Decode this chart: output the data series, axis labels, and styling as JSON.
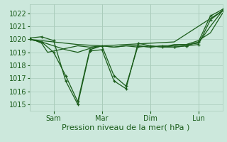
{
  "background_color": "#cce8dc",
  "grid_color": "#aaccbb",
  "line_color": "#1a5c1a",
  "xlabel": "Pression niveau de la mer( hPa )",
  "xlabel_fontsize": 8,
  "tick_label_fontsize": 7,
  "ylim": [
    1014.5,
    1022.7
  ],
  "yticks": [
    1015,
    1016,
    1017,
    1018,
    1019,
    1020,
    1021,
    1022
  ],
  "x_tick_positions": [
    1,
    3,
    5,
    7
  ],
  "x_tick_labels": [
    "Sam",
    "Mar",
    "Dim",
    "Lun"
  ],
  "xlim": [
    0,
    8
  ],
  "series1_x": [
    0,
    0.5,
    1.0,
    1.5,
    2.0,
    2.5,
    3.0,
    3.5,
    4.0,
    4.5,
    5.0,
    5.5,
    6.0,
    6.5,
    7.0,
    7.5,
    8.0
  ],
  "series1_y": [
    1020.1,
    1020.2,
    1019.9,
    1016.8,
    1015.0,
    1019.1,
    1019.2,
    1016.8,
    1016.2,
    1019.7,
    1019.5,
    1019.4,
    1019.4,
    1019.5,
    1019.6,
    1021.5,
    1022.2
  ],
  "series2_x": [
    0,
    0.5,
    1.0,
    1.5,
    2.0,
    2.5,
    3.0,
    3.5,
    4.0,
    4.5,
    5.0,
    5.5,
    6.0,
    6.5,
    7.0,
    7.5,
    8.0
  ],
  "series2_y": [
    1020.0,
    1019.8,
    1019.0,
    1017.2,
    1015.2,
    1019.2,
    1019.5,
    1017.2,
    1016.4,
    1019.5,
    1019.4,
    1019.5,
    1019.4,
    1019.5,
    1019.8,
    1021.8,
    1022.3
  ],
  "series3_x": [
    0,
    1.0,
    2.0,
    3.0,
    4.0,
    5.0,
    6.0,
    7.0,
    8.0
  ],
  "series3_y": [
    1020.0,
    1019.8,
    1019.6,
    1019.5,
    1019.6,
    1019.7,
    1019.8,
    1021.0,
    1022.2
  ],
  "series4_x": [
    0,
    0.25,
    0.5,
    0.75,
    1.0,
    1.5,
    2.0,
    2.5,
    3.0,
    3.5,
    4.0,
    4.5,
    5.0,
    5.5,
    6.0,
    6.5,
    7.0,
    7.5,
    8.0
  ],
  "series4_y": [
    1020.0,
    1019.9,
    1019.7,
    1019.0,
    1019.1,
    1019.3,
    1019.5,
    1019.4,
    1019.5,
    1019.4,
    1019.5,
    1019.5,
    1019.4,
    1019.5,
    1019.5,
    1019.6,
    1019.7,
    1021.0,
    1022.2
  ],
  "series5_x": [
    0,
    0.5,
    1.0,
    1.5,
    2.0,
    2.5,
    3.0,
    3.5,
    4.0,
    4.5,
    5.0,
    5.5,
    6.0,
    6.5,
    7.0,
    7.5,
    8.0
  ],
  "series5_y": [
    1020.0,
    1019.8,
    1019.5,
    1019.2,
    1019.0,
    1019.3,
    1019.5,
    1019.4,
    1019.5,
    1019.4,
    1019.5,
    1019.4,
    1019.6,
    1019.6,
    1019.9,
    1020.5,
    1022.0
  ]
}
